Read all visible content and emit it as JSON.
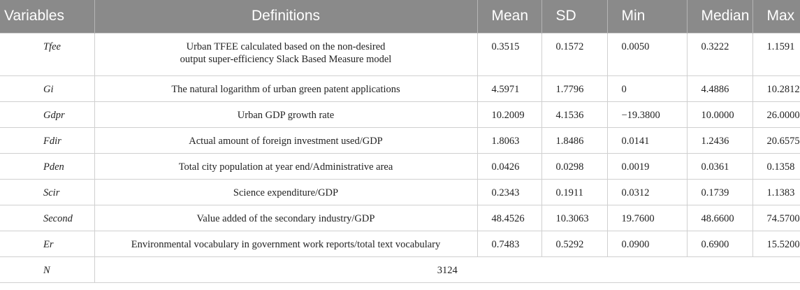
{
  "table": {
    "headers": {
      "variables": "Variables",
      "definitions": "Definitions",
      "mean": "Mean",
      "sd": "SD",
      "min": "Min",
      "median": "Median",
      "max": "Max"
    },
    "rows": [
      {
        "var": "Tfee",
        "def_line1": "Urban TFEE calculated based on the non-desired",
        "def_line2": "output super-efficiency Slack Based Measure model",
        "mean": "0.3515",
        "sd": "0.1572",
        "min": "0.0050",
        "median": "0.3222",
        "max": "1.1591"
      },
      {
        "var": "Gi",
        "def": "The natural logarithm of urban green patent applications",
        "mean": "4.5971",
        "sd": "1.7796",
        "min": "0",
        "median": "4.4886",
        "max": "10.2812"
      },
      {
        "var": "Gdpr",
        "def": "Urban GDP growth rate",
        "mean": "10.2009",
        "sd": "4.1536",
        "min": "−19.3800",
        "median": "10.0000",
        "max": "26.0000"
      },
      {
        "var": "Fdir",
        "def": "Actual amount of foreign investment used/GDP",
        "mean": "1.8063",
        "sd": "1.8486",
        "min": "0.0141",
        "median": "1.2436",
        "max": "20.6575"
      },
      {
        "var": "Pden",
        "def": "Total city population at year end/Administrative area",
        "mean": "0.0426",
        "sd": "0.0298",
        "min": "0.0019",
        "median": "0.0361",
        "max": "0.1358"
      },
      {
        "var": "Scir",
        "def": "Science expenditure/GDP",
        "mean": "0.2343",
        "sd": "0.1911",
        "min": "0.0312",
        "median": "0.1739",
        "max": "1.1383"
      },
      {
        "var": "Second",
        "def": "Value added of the secondary industry/GDP",
        "mean": "48.4526",
        "sd": "10.3063",
        "min": "19.7600",
        "median": "48.6600",
        "max": "74.5700"
      },
      {
        "var": "Er",
        "def": "Environmental vocabulary in government work reports/total text vocabulary",
        "mean": "0.7483",
        "sd": "0.5292",
        "min": "0.0900",
        "median": "0.6900",
        "max": "15.5200"
      }
    ],
    "n_row": {
      "var": "N",
      "value": "3124"
    }
  }
}
